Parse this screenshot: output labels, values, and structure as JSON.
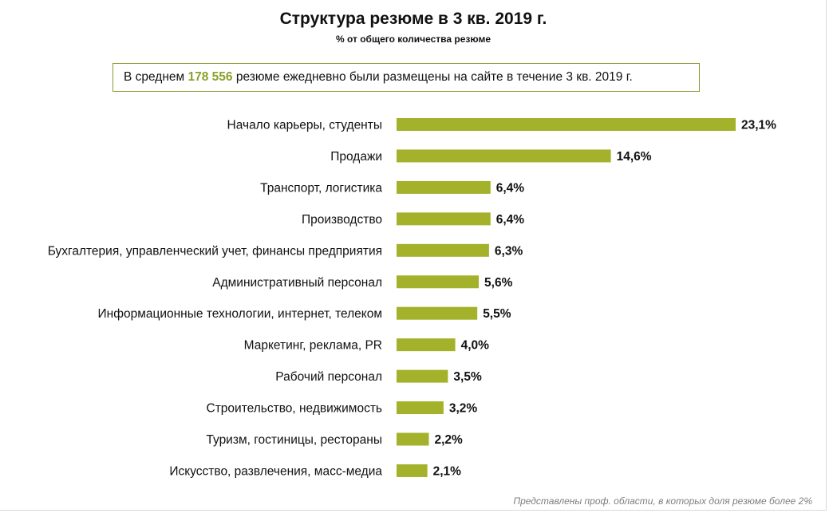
{
  "header": {
    "title": "Структура резюме в 3 кв. 2019 г.",
    "subtitle": "% от общего количества резюме"
  },
  "note": {
    "prefix": "В среднем ",
    "highlight": "178 556",
    "suffix": " резюме ежедневно были размещены на сайте в течение  3 кв. 2019 г."
  },
  "footnote": "Представлены проф. области, в которых доля резюме более 2%",
  "colors": {
    "bar": "#a4b22b",
    "highlight": "#8aa12a",
    "box_border": "#8a9a32"
  },
  "chart_data": {
    "type": "bar",
    "orientation": "horizontal",
    "categories": [
      "Начало карьеры, студенты",
      "Продажи",
      "Транспорт, логистика",
      "Производство",
      "Бухгалтерия, управленческий учет, финансы предприятия",
      "Административный персонал",
      "Информационные технологии, интернет, телеком",
      "Маркетинг, реклама, PR",
      "Рабочий персонал",
      "Строительство, недвижимость",
      "Туризм, гостиницы, рестораны",
      "Искусство, развлечения, масс-медиа"
    ],
    "values": [
      23.1,
      14.6,
      6.4,
      6.4,
      6.3,
      5.6,
      5.5,
      4.0,
      3.5,
      3.2,
      2.2,
      2.1
    ],
    "value_labels": [
      "23,1%",
      "14,6%",
      "6,4%",
      "6,4%",
      "6,3%",
      "5,6%",
      "5,5%",
      "4,0%",
      "3,5%",
      "3,2%",
      "2,2%",
      "2,1%"
    ],
    "title": "Структура резюме в 3 кв. 2019 г.",
    "subtitle": "% от общего количества резюме",
    "xlabel": "",
    "ylabel": "",
    "xlim": [
      0,
      23.1
    ],
    "grid": false,
    "legend": "none"
  }
}
